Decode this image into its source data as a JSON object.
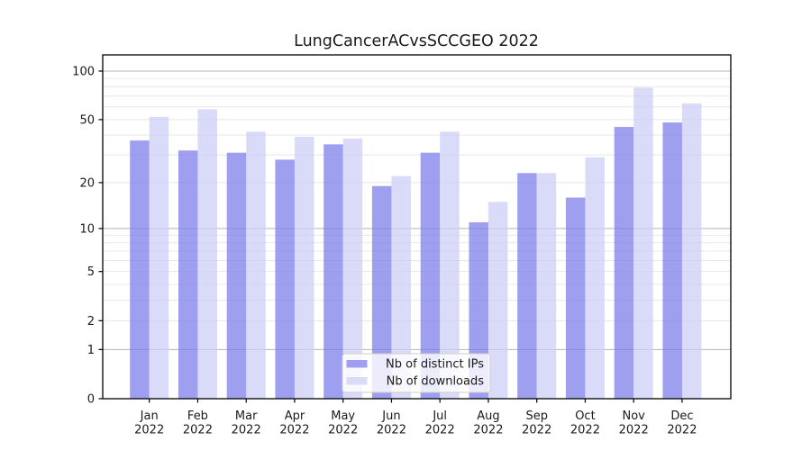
{
  "title": "LungCancerACvsSCCGEO 2022",
  "chart_data": {
    "type": "bar",
    "title": "LungCancerACvsSCCGEO 2022",
    "xlabel": "",
    "ylabel": "",
    "yscale": "log1p",
    "ylim": [
      0,
      126
    ],
    "grid": true,
    "legend_position": "lower center",
    "categories": [
      "Jan",
      "Feb",
      "Mar",
      "Apr",
      "May",
      "Jun",
      "Jul",
      "Aug",
      "Sep",
      "Oct",
      "Nov",
      "Dec"
    ],
    "x_tick_line2": "2022",
    "yticks": [
      0,
      1,
      2,
      5,
      10,
      20,
      50,
      100
    ],
    "minor_yticks": [
      3,
      4,
      6,
      7,
      8,
      9,
      30,
      40,
      60,
      70,
      80,
      90
    ],
    "series": [
      {
        "name": "Nb of distinct IPs",
        "color": "#9f9fef",
        "values": [
          37,
          32,
          31,
          28,
          35,
          19,
          31,
          11,
          23,
          16,
          45,
          48
        ]
      },
      {
        "name": "Nb of downloads",
        "color": "#dadaf9",
        "values": [
          52,
          58,
          42,
          39,
          38,
          22,
          42,
          15,
          23,
          29,
          79,
          63
        ]
      }
    ]
  },
  "colors": {
    "background": "#ffffff",
    "major_grid": "#b5b5b5",
    "minor_grid": "#e8e8e8",
    "spine": "#000000",
    "legend_border": "#cccccc"
  }
}
